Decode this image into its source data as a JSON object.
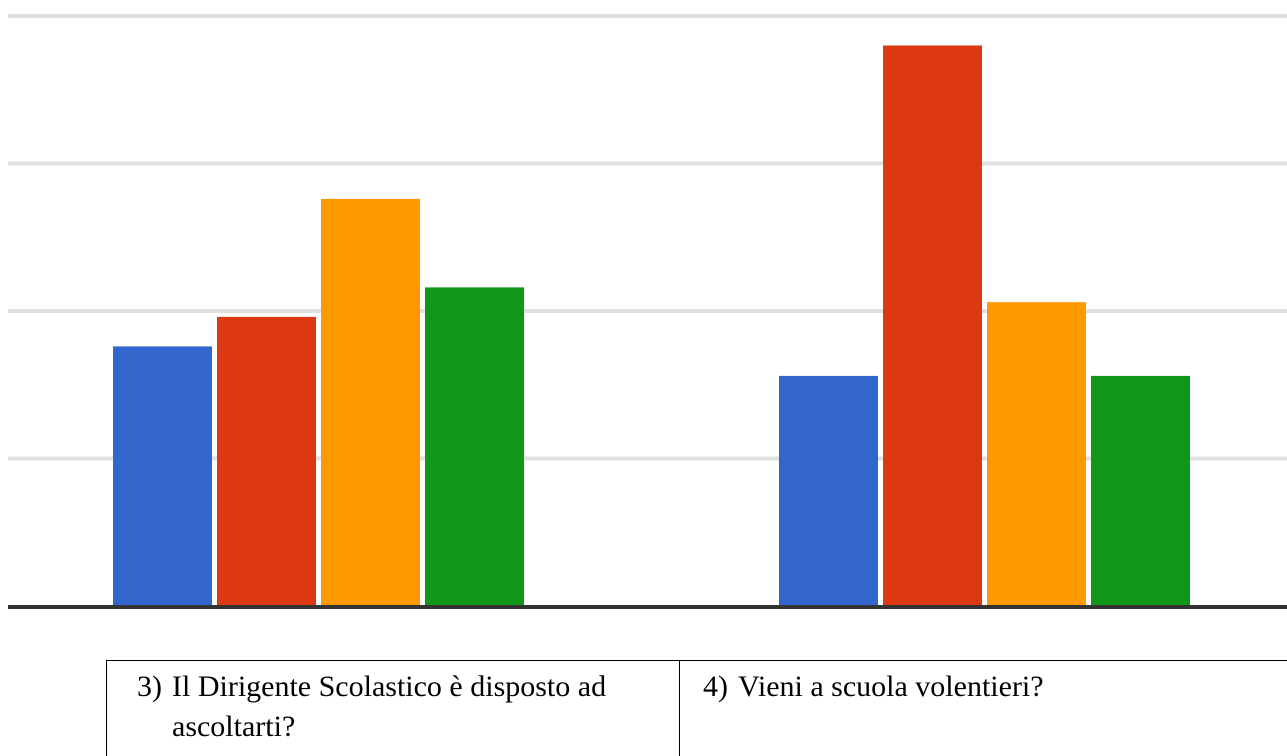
{
  "chart_data": {
    "type": "bar",
    "categories": [
      "3) Il Dirigente Scolastico è disposto ad ascoltarti?",
      "4) Vieni a scuola volentieri?"
    ],
    "series": [
      {
        "color": "#3366cc",
        "values": [
          8.8,
          7.8
        ]
      },
      {
        "color": "#dc3912",
        "values": [
          9.8,
          19.0
        ]
      },
      {
        "color": "#ff9900",
        "values": [
          13.8,
          10.3
        ]
      },
      {
        "color": "#109618",
        "values": [
          10.8,
          7.8
        ]
      }
    ],
    "ylim": [
      0,
      20
    ],
    "gridlines": [
      5,
      10,
      15,
      20
    ],
    "grid": true,
    "axis_labels_visible": false,
    "gridline_color": "#e0e0e0",
    "baseline_color": "#333333"
  },
  "questions": [
    {
      "number": "3)",
      "text": "Il Dirigente Scolastico è disposto ad ascoltarti?"
    },
    {
      "number": "4)",
      "text": "Vieni a scuola volentieri?"
    }
  ]
}
